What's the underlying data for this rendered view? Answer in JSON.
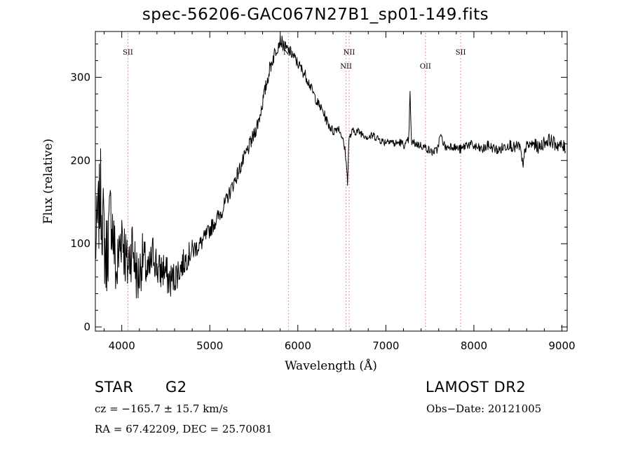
{
  "chart_data": {
    "type": "line",
    "title": "spec-56206-GAC067N27B1_sp01-149.fits",
    "xlabel": "Wavelength (Å)",
    "ylabel": "Flux (relative)",
    "xlim": [
      3700,
      9060
    ],
    "ylim": [
      -5,
      355
    ],
    "x_ticks": [
      4000,
      5000,
      6000,
      7000,
      8000,
      9000
    ],
    "x_tick_labels": [
      "4000",
      "5000",
      "6000",
      "7000",
      "8000",
      "9000"
    ],
    "y_ticks": [
      0,
      100,
      200,
      300
    ],
    "y_tick_labels": [
      "0",
      "100",
      "200",
      "300"
    ],
    "grid": false,
    "line_color": "#000000",
    "marker_color": "#e07070",
    "spectral_lines": [
      {
        "name": "SII",
        "wavelength": 4070,
        "label_row": 0
      },
      {
        "name": "Na",
        "wavelength": 5893,
        "label_row": 0
      },
      {
        "name": "NII",
        "wavelength": 6548,
        "label_row": 1
      },
      {
        "name": "NII",
        "wavelength": 6583,
        "label_row": 0
      },
      {
        "name": "OII",
        "wavelength": 7450,
        "label_row": 1
      },
      {
        "name": "SII",
        "wavelength": 7850,
        "label_row": 0
      }
    ],
    "series": [
      {
        "x": [
          3700,
          3760,
          3820,
          3880,
          3940,
          4000,
          4060,
          4120,
          4180,
          4240,
          4300,
          4360,
          4420,
          4480,
          4540,
          4600,
          4660,
          4720,
          4780,
          4840,
          4900,
          4960,
          5020,
          5080,
          5140,
          5200,
          5260,
          5320,
          5380,
          5440,
          5500,
          5560,
          5620,
          5680,
          5740,
          5800,
          5860,
          5920,
          5980,
          6040,
          6100,
          6160,
          6220,
          6280,
          6340,
          6400,
          6460,
          6500,
          6540,
          6565,
          6580,
          6620,
          6680,
          6740,
          6800,
          6860,
          6920,
          6980,
          7040,
          7100,
          7160,
          7220,
          7260,
          7275,
          7290,
          7340,
          7400,
          7460,
          7520,
          7580,
          7620,
          7680,
          7740,
          7800,
          7860,
          7920,
          7980,
          8040,
          8100,
          8160,
          8220,
          8280,
          8340,
          8400,
          8460,
          8520,
          8560,
          8580,
          8620,
          8680,
          8740,
          8800,
          8860,
          8920,
          8980,
          9040
        ],
        "y": [
          95,
          160,
          80,
          140,
          60,
          120,
          70,
          100,
          55,
          85,
          60,
          90,
          65,
          70,
          55,
          60,
          70,
          80,
          90,
          95,
          100,
          110,
          120,
          130,
          140,
          155,
          170,
          185,
          200,
          215,
          230,
          250,
          280,
          310,
          330,
          345,
          335,
          330,
          320,
          310,
          300,
          285,
          270,
          260,
          245,
          235,
          240,
          230,
          210,
          175,
          225,
          235,
          235,
          232,
          228,
          230,
          226,
          222,
          225,
          220,
          222,
          218,
          225,
          280,
          222,
          220,
          218,
          215,
          210,
          212,
          230,
          215,
          218,
          215,
          213,
          220,
          218,
          215,
          213,
          218,
          215,
          212,
          216,
          220,
          215,
          218,
          190,
          215,
          218,
          220,
          215,
          222,
          225,
          220,
          218,
          215
        ],
        "noise": [
          45,
          55,
          55,
          50,
          45,
          45,
          40,
          38,
          35,
          30,
          28,
          26,
          25,
          24,
          22,
          20,
          18,
          16,
          14,
          12,
          11,
          10,
          10,
          10,
          9,
          9,
          9,
          9,
          9,
          9,
          9,
          9,
          9,
          9,
          9,
          8,
          8,
          7,
          7,
          7,
          7,
          6,
          6,
          6,
          6,
          6,
          5,
          5,
          5,
          5,
          5,
          5,
          5,
          5,
          5,
          5,
          5,
          5,
          5,
          5,
          5,
          5,
          5,
          5,
          5,
          5,
          5,
          5,
          5,
          5,
          5,
          5,
          5,
          5,
          6,
          6,
          6,
          6,
          6,
          6,
          6,
          6,
          7,
          7,
          7,
          7,
          7,
          7,
          7,
          7,
          8,
          8,
          8,
          8,
          8,
          8
        ]
      }
    ]
  },
  "info": {
    "object_class": "STAR",
    "subclass": "G2",
    "survey": "LAMOST DR2",
    "redshift": "cz = −165.7 ± 15.7 km/s",
    "obs_date": "Obs−Date: 20121005",
    "coords": "RA =  67.42209, DEC =  25.70081"
  }
}
